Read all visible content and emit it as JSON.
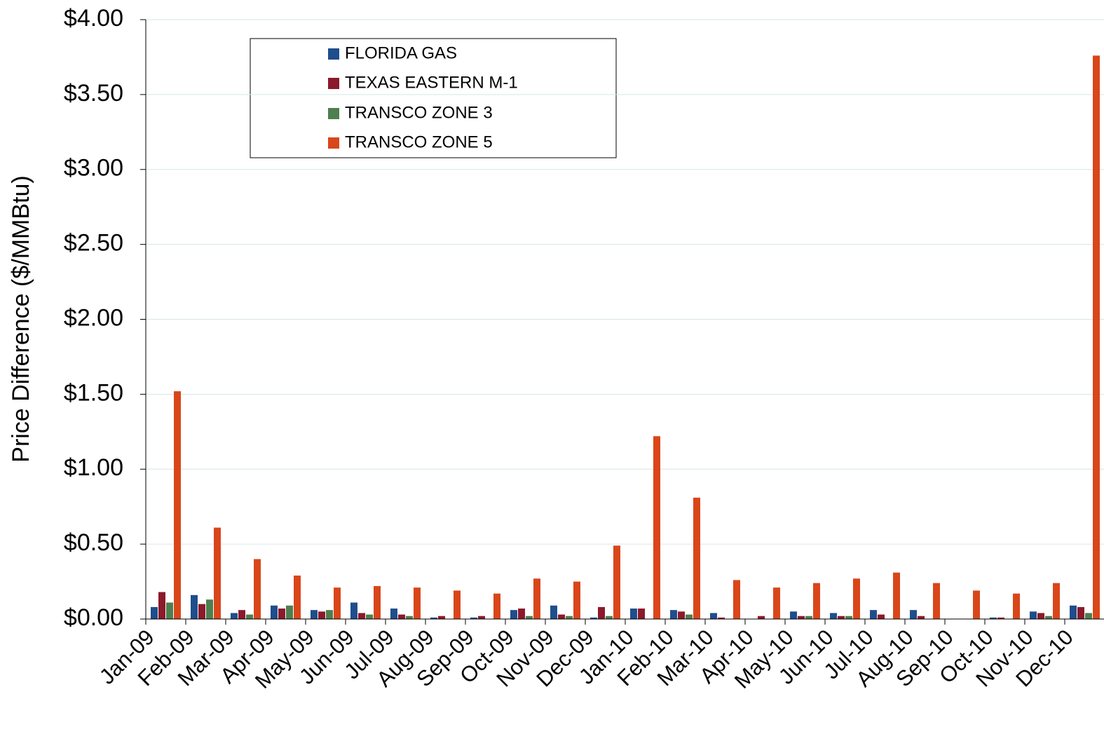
{
  "chart_data": {
    "type": "bar",
    "y_label": "Price Difference  ($/MMBtu)",
    "categories": [
      "Jan-09",
      "Feb-09",
      "Mar-09",
      "Apr-09",
      "May-09",
      "Jun-09",
      "Jul-09",
      "Aug-09",
      "Sep-09",
      "Oct-09",
      "Nov-09",
      "Dec-09",
      "Jan-10",
      "Feb-10",
      "Mar-10",
      "Apr-10",
      "May-10",
      "Jun-10",
      "Jul-10",
      "Aug-10",
      "Sep-10",
      "Oct-10",
      "Nov-10",
      "Dec-10"
    ],
    "series": [
      {
        "name": "FLORIDA GAS",
        "color": "#1f4e8c",
        "values": [
          0.08,
          0.16,
          0.04,
          0.09,
          0.06,
          0.11,
          0.07,
          0.01,
          0.01,
          0.06,
          0.09,
          0.01,
          0.07,
          0.06,
          0.04,
          0,
          0.05,
          0.04,
          0.06,
          0.06,
          0,
          0.01,
          0.05,
          0.09
        ]
      },
      {
        "name": "TEXAS EASTERN M-1",
        "color": "#8b1a2b",
        "values": [
          0.18,
          0.1,
          0.06,
          0.07,
          0.05,
          0.04,
          0.03,
          0.02,
          0.02,
          0.07,
          0.03,
          0.08,
          0.07,
          0.05,
          0.01,
          0.02,
          0.02,
          0.02,
          0.03,
          0.02,
          0,
          0.01,
          0.04,
          0.08
        ]
      },
      {
        "name": "TRANSCO ZONE 3",
        "color": "#4e7f4e",
        "values": [
          0.11,
          0.13,
          0.03,
          0.09,
          0.06,
          0.03,
          0.02,
          0,
          0,
          0.02,
          0.02,
          0.02,
          0,
          0.03,
          0,
          0,
          0.02,
          0.02,
          0,
          0,
          0,
          0,
          0.02,
          0.04
        ]
      },
      {
        "name": "TRANSCO ZONE 5",
        "color": "#d9461a",
        "values": [
          1.52,
          0.61,
          0.4,
          0.29,
          0.21,
          0.22,
          0.21,
          0.19,
          0.17,
          0.27,
          0.25,
          0.49,
          1.22,
          0.81,
          0.26,
          0.21,
          0.24,
          0.27,
          0.31,
          0.24,
          0.19,
          0.17,
          0.24,
          3.76
        ]
      }
    ],
    "ylim": [
      0,
      4
    ],
    "yticks": [
      {
        "value": 0,
        "label": "$0.00"
      },
      {
        "value": 0.5,
        "label": "$0.50"
      },
      {
        "value": 1,
        "label": "$1.00"
      },
      {
        "value": 1.5,
        "label": "$1.50"
      },
      {
        "value": 2,
        "label": "$2.00"
      },
      {
        "value": 2.5,
        "label": "$2.50"
      },
      {
        "value": 3,
        "label": "$3.00"
      },
      {
        "value": 3.5,
        "label": "$3.50"
      },
      {
        "value": 4,
        "label": "$4.00"
      }
    ],
    "grid": true
  }
}
